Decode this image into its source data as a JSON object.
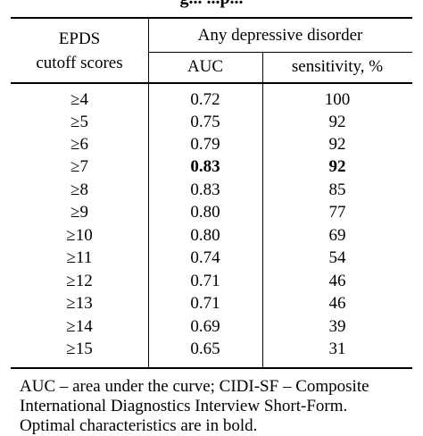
{
  "title_fragment": "g... ...p...",
  "table": {
    "header": {
      "row_label_line1": "EPDS",
      "row_label_line2": "cutoff scores",
      "group_label": "Any depressive disorder",
      "col_auc": "AUC",
      "col_sensitivity": "sensitivity, %"
    },
    "rows": [
      {
        "cutoff": "≥4",
        "auc": "0.72",
        "sensitivity": "100",
        "bold": false
      },
      {
        "cutoff": "≥5",
        "auc": "0.75",
        "sensitivity": "92",
        "bold": false
      },
      {
        "cutoff": "≥6",
        "auc": "0.79",
        "sensitivity": "92",
        "bold": false
      },
      {
        "cutoff": "≥7",
        "auc": "0.83",
        "sensitivity": "92",
        "bold": true
      },
      {
        "cutoff": "≥8",
        "auc": "0.83",
        "sensitivity": "85",
        "bold": false
      },
      {
        "cutoff": "≥9",
        "auc": "0.80",
        "sensitivity": "77",
        "bold": false
      },
      {
        "cutoff": "≥10",
        "auc": "0.80",
        "sensitivity": "69",
        "bold": false
      },
      {
        "cutoff": "≥11",
        "auc": "0.74",
        "sensitivity": "54",
        "bold": false
      },
      {
        "cutoff": "≥12",
        "auc": "0.71",
        "sensitivity": "46",
        "bold": false
      },
      {
        "cutoff": "≥13",
        "auc": "0.71",
        "sensitivity": "46",
        "bold": false
      },
      {
        "cutoff": "≥14",
        "auc": "0.69",
        "sensitivity": "39",
        "bold": false
      },
      {
        "cutoff": "≥15",
        "auc": "0.65",
        "sensitivity": "31",
        "bold": false
      }
    ]
  },
  "footnote": {
    "line1": "AUC – area under the curve; CIDI-SF – Composite",
    "line2": "International Diagnostics Interview Short-Form.",
    "line3": "Optimal characteristics are in bold."
  }
}
